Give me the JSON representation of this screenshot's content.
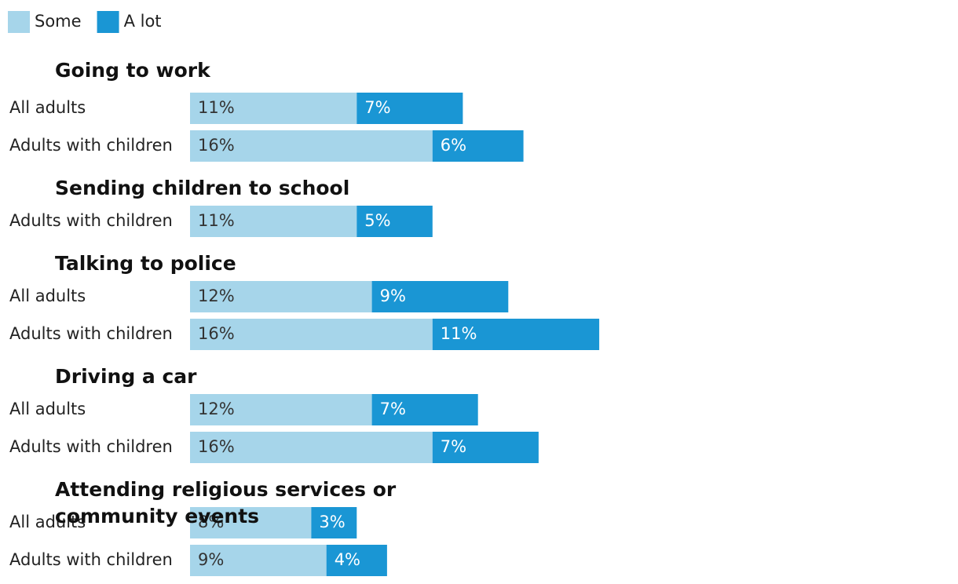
{
  "chart_data": {
    "type": "bar",
    "orientation": "horizontal",
    "stacked": true,
    "series": [
      {
        "name": "Some",
        "color": "#a6d5ea",
        "label_color": "#333333",
        "values": [
          [
            11,
            16
          ],
          [
            11
          ],
          [
            12,
            16
          ],
          [
            12,
            16
          ],
          [
            8,
            9
          ]
        ],
        "value_labels": [
          [
            "11%",
            "16%"
          ],
          [
            "11%"
          ],
          [
            "12%",
            "16%"
          ],
          [
            "12%",
            "16%"
          ],
          [
            "8%",
            "9%"
          ]
        ]
      },
      {
        "name": "A lot",
        "color": "#1a96d4",
        "label_color": "#ffffff",
        "values": [
          [
            7,
            6
          ],
          [
            5
          ],
          [
            9,
            11
          ],
          [
            7,
            7
          ],
          [
            3,
            4
          ]
        ],
        "value_labels": [
          [
            "7%",
            "6%"
          ],
          [
            "5%"
          ],
          [
            "9%",
            "11%"
          ],
          [
            "7%",
            "7%"
          ],
          [
            "3%",
            "4%"
          ]
        ]
      }
    ],
    "groups": [
      {
        "title": "Going to work",
        "categories": [
          "All adults",
          "Adults with children"
        ]
      },
      {
        "title": "Sending children to school",
        "categories": [
          "Adults with children"
        ]
      },
      {
        "title": "Talking to police",
        "categories": [
          "All adults",
          "Adults with children"
        ]
      },
      {
        "title": "Driving a car",
        "categories": [
          "All adults",
          "Adults with children"
        ]
      },
      {
        "title": "Attending religious services or community events",
        "categories": [
          "All adults",
          "Adults with children"
        ]
      }
    ]
  }
}
